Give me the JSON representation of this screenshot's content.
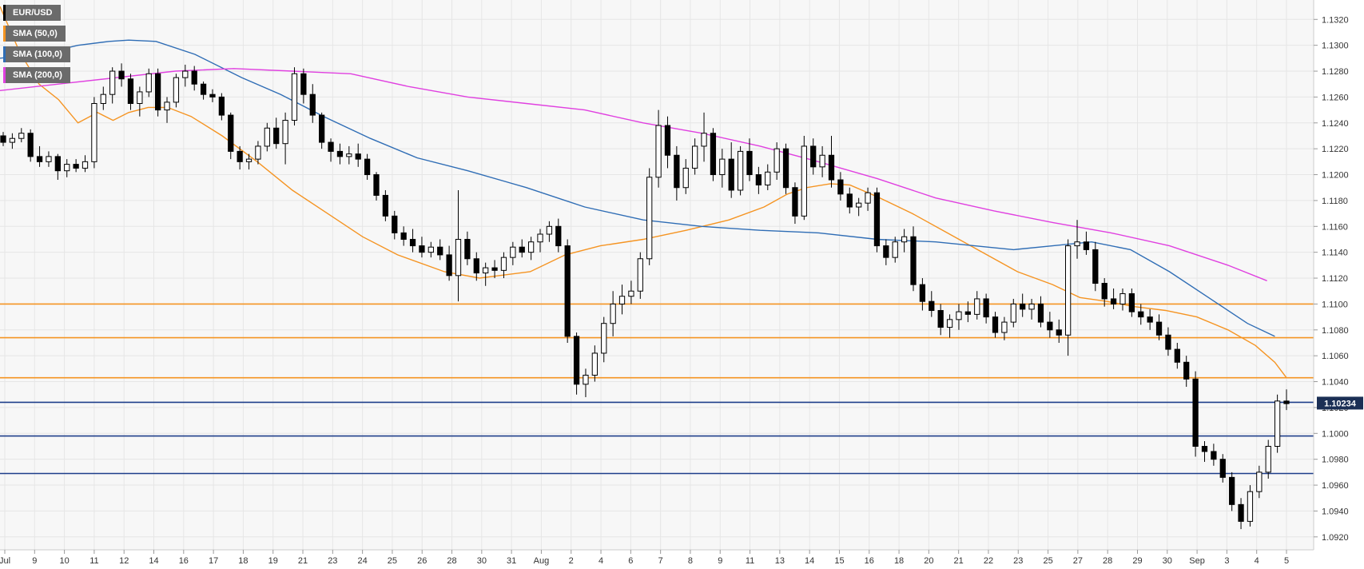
{
  "legend": [
    {
      "label": "EUR/USD",
      "color": "#000000"
    },
    {
      "label": "SMA (50,0)",
      "color": "#f59422"
    },
    {
      "label": "SMA (100,0)",
      "color": "#2f6db5"
    },
    {
      "label": "SMA (200,0)",
      "color": "#e040e0"
    }
  ],
  "chart_data": {
    "type": "candlestick",
    "symbol": "EUR/USD",
    "ylim": [
      1.091,
      1.1335
    ],
    "y_ticks": [
      1.132,
      1.13,
      1.128,
      1.126,
      1.124,
      1.122,
      1.12,
      1.118,
      1.116,
      1.114,
      1.112,
      1.11,
      1.108,
      1.106,
      1.104,
      1.102,
      1.1,
      1.098,
      1.096,
      1.094,
      1.092
    ],
    "x_labels": [
      "Jul",
      "9",
      "10",
      "11",
      "12",
      "14",
      "16",
      "17",
      "18",
      "19",
      "21",
      "23",
      "24",
      "25",
      "26",
      "28",
      "30",
      "31",
      "Aug",
      "2",
      "4",
      "6",
      "7",
      "8",
      "9",
      "11",
      "13",
      "14",
      "15",
      "16",
      "18",
      "20",
      "21",
      "22",
      "23",
      "25",
      "27",
      "28",
      "29",
      "30",
      "Sep",
      "3",
      "4",
      "5"
    ],
    "last_price": 1.10234,
    "last_price_label": "1.10234",
    "horizontal_levels": [
      {
        "value": 1.11,
        "color": "#f59422"
      },
      {
        "value": 1.1074,
        "color": "#f59422"
      },
      {
        "value": 1.1043,
        "color": "#f59422"
      },
      {
        "value": 1.1024,
        "color": "#1e3e8a"
      },
      {
        "value": 1.0998,
        "color": "#1e3e8a"
      },
      {
        "value": 1.0969,
        "color": "#1e3e8a"
      }
    ],
    "series": [
      {
        "name": "SMA (50,0)",
        "color": "#f59422",
        "points": [
          [
            0,
            1.133
          ],
          [
            0.05,
            1.1295
          ],
          [
            0.1,
            1.127
          ],
          [
            0.15,
            1.1258
          ],
          [
            0.2,
            1.124
          ],
          [
            0.25,
            1.1248
          ],
          [
            0.29,
            1.1242
          ],
          [
            0.33,
            1.1248
          ],
          [
            0.38,
            1.1252
          ],
          [
            0.43,
            1.1252
          ],
          [
            0.49,
            1.1245
          ],
          [
            0.57,
            1.123
          ],
          [
            0.66,
            1.121
          ],
          [
            0.75,
            1.1188
          ],
          [
            0.84,
            1.117
          ],
          [
            0.93,
            1.1152
          ],
          [
            1.02,
            1.1138
          ],
          [
            1.14,
            1.1125
          ],
          [
            1.23,
            1.112
          ],
          [
            1.36,
            1.1125
          ],
          [
            1.45,
            1.1138
          ],
          [
            1.54,
            1.1145
          ],
          [
            1.65,
            1.115
          ],
          [
            1.76,
            1.1157
          ],
          [
            1.87,
            1.1165
          ],
          [
            1.96,
            1.1175
          ],
          [
            2.02,
            1.1185
          ],
          [
            2.07,
            1.119
          ],
          [
            2.13,
            1.1193
          ],
          [
            2.18,
            1.1192
          ],
          [
            2.25,
            1.1183
          ],
          [
            2.34,
            1.117
          ],
          [
            2.43,
            1.1155
          ],
          [
            2.52,
            1.114
          ],
          [
            2.61,
            1.1125
          ],
          [
            2.7,
            1.1115
          ],
          [
            2.77,
            1.1105
          ],
          [
            2.84,
            1.1102
          ],
          [
            2.91,
            1.1098
          ],
          [
            2.99,
            1.1095
          ],
          [
            3.07,
            1.109
          ],
          [
            3.15,
            1.108
          ],
          [
            3.22,
            1.1068
          ],
          [
            3.27,
            1.1055
          ],
          [
            3.3,
            1.1043
          ]
        ]
      },
      {
        "name": "SMA (100,0)",
        "color": "#2f6db5",
        "points": [
          [
            0,
            1.129
          ],
          [
            0.1,
            1.1293
          ],
          [
            0.2,
            1.13
          ],
          [
            0.28,
            1.1303
          ],
          [
            0.33,
            1.1304
          ],
          [
            0.4,
            1.1303
          ],
          [
            0.5,
            1.1293
          ],
          [
            0.62,
            1.1275
          ],
          [
            0.72,
            1.1262
          ],
          [
            0.83,
            1.1245
          ],
          [
            0.95,
            1.1228
          ],
          [
            1.07,
            1.1213
          ],
          [
            1.2,
            1.1203
          ],
          [
            1.35,
            1.119
          ],
          [
            1.5,
            1.1175
          ],
          [
            1.65,
            1.1165
          ],
          [
            1.8,
            1.116
          ],
          [
            1.95,
            1.1157
          ],
          [
            2.1,
            1.1155
          ],
          [
            2.25,
            1.115
          ],
          [
            2.4,
            1.1148
          ],
          [
            2.5,
            1.1145
          ],
          [
            2.6,
            1.1142
          ],
          [
            2.7,
            1.1145
          ],
          [
            2.8,
            1.1148
          ],
          [
            2.9,
            1.1142
          ],
          [
            3.0,
            1.1125
          ],
          [
            3.1,
            1.1105
          ],
          [
            3.2,
            1.1085
          ],
          [
            3.27,
            1.1075
          ]
        ]
      },
      {
        "name": "SMA (200,0)",
        "color": "#e040e0",
        "points": [
          [
            0,
            1.1265
          ],
          [
            0.15,
            1.127
          ],
          [
            0.3,
            1.1275
          ],
          [
            0.45,
            1.128
          ],
          [
            0.6,
            1.1282
          ],
          [
            0.75,
            1.128
          ],
          [
            0.9,
            1.1278
          ],
          [
            1.05,
            1.1268
          ],
          [
            1.2,
            1.126
          ],
          [
            1.35,
            1.1255
          ],
          [
            1.5,
            1.125
          ],
          [
            1.65,
            1.124
          ],
          [
            1.8,
            1.1232
          ],
          [
            1.95,
            1.1222
          ],
          [
            2.1,
            1.121
          ],
          [
            2.25,
            1.1197
          ],
          [
            2.4,
            1.1182
          ],
          [
            2.55,
            1.1172
          ],
          [
            2.7,
            1.1163
          ],
          [
            2.85,
            1.1155
          ],
          [
            3.0,
            1.1145
          ],
          [
            3.15,
            1.113
          ],
          [
            3.25,
            1.1118
          ]
        ]
      }
    ],
    "candles": [
      [
        1.123,
        1.1233,
        1.1222,
        1.1225
      ],
      [
        1.1225,
        1.1232,
        1.122,
        1.1228
      ],
      [
        1.1228,
        1.1236,
        1.1225,
        1.1232
      ],
      [
        1.1232,
        1.1235,
        1.121,
        1.1214
      ],
      [
        1.1214,
        1.1222,
        1.1206,
        1.121
      ],
      [
        1.121,
        1.1218,
        1.1206,
        1.1214
      ],
      [
        1.1214,
        1.1216,
        1.1196,
        1.1203
      ],
      [
        1.1203,
        1.1212,
        1.1198,
        1.1208
      ],
      [
        1.1208,
        1.1212,
        1.1202,
        1.1205
      ],
      [
        1.1205,
        1.1215,
        1.1202,
        1.121
      ],
      [
        1.121,
        1.126,
        1.1205,
        1.1255
      ],
      [
        1.1255,
        1.1268,
        1.125,
        1.1262
      ],
      [
        1.1262,
        1.1283,
        1.1255,
        1.128
      ],
      [
        1.128,
        1.1286,
        1.1268,
        1.1274
      ],
      [
        1.1274,
        1.1278,
        1.125,
        1.1255
      ],
      [
        1.1255,
        1.1268,
        1.1245,
        1.1264
      ],
      [
        1.1264,
        1.1282,
        1.126,
        1.1278
      ],
      [
        1.1278,
        1.1282,
        1.1245,
        1.125
      ],
      [
        1.125,
        1.126,
        1.124,
        1.1256
      ],
      [
        1.1256,
        1.1278,
        1.1252,
        1.1275
      ],
      [
        1.1275,
        1.1285,
        1.1268,
        1.128
      ],
      [
        1.128,
        1.1284,
        1.1265,
        1.127
      ],
      [
        1.127,
        1.1272,
        1.1258,
        1.1262
      ],
      [
        1.1262,
        1.1266,
        1.1256,
        1.126
      ],
      [
        1.126,
        1.1263,
        1.1242,
        1.1246
      ],
      [
        1.1246,
        1.1248,
        1.1212,
        1.1218
      ],
      [
        1.1218,
        1.1222,
        1.1204,
        1.121
      ],
      [
        1.121,
        1.1216,
        1.1204,
        1.1212
      ],
      [
        1.1212,
        1.1226,
        1.1208,
        1.1222
      ],
      [
        1.1222,
        1.124,
        1.1218,
        1.1236
      ],
      [
        1.1236,
        1.1244,
        1.122,
        1.1224
      ],
      [
        1.1224,
        1.1248,
        1.1208,
        1.1242
      ],
      [
        1.1242,
        1.1283,
        1.1238,
        1.1278
      ],
      [
        1.1278,
        1.1282,
        1.1255,
        1.1262
      ],
      [
        1.1262,
        1.127,
        1.124,
        1.1246
      ],
      [
        1.1246,
        1.1248,
        1.122,
        1.1225
      ],
      [
        1.1225,
        1.1228,
        1.121,
        1.1218
      ],
      [
        1.1218,
        1.1224,
        1.1208,
        1.1214
      ],
      [
        1.1214,
        1.1222,
        1.1208,
        1.1216
      ],
      [
        1.1216,
        1.1224,
        1.1206,
        1.1212
      ],
      [
        1.1212,
        1.1216,
        1.1196,
        1.12
      ],
      [
        1.12,
        1.1202,
        1.118,
        1.1184
      ],
      [
        1.1184,
        1.1188,
        1.1164,
        1.1168
      ],
      [
        1.1168,
        1.1172,
        1.115,
        1.1155
      ],
      [
        1.1155,
        1.116,
        1.1145,
        1.115
      ],
      [
        1.115,
        1.1158,
        1.114,
        1.1145
      ],
      [
        1.1145,
        1.1152,
        1.1136,
        1.114
      ],
      [
        1.114,
        1.1148,
        1.1136,
        1.1144
      ],
      [
        1.1144,
        1.115,
        1.1134,
        1.1138
      ],
      [
        1.1138,
        1.1145,
        1.1118,
        1.1122
      ],
      [
        1.1122,
        1.1188,
        1.1102,
        1.115
      ],
      [
        1.115,
        1.1156,
        1.113,
        1.1135
      ],
      [
        1.1135,
        1.114,
        1.1118,
        1.1124
      ],
      [
        1.1124,
        1.1132,
        1.1114,
        1.1128
      ],
      [
        1.1128,
        1.1134,
        1.112,
        1.1126
      ],
      [
        1.1126,
        1.114,
        1.112,
        1.1136
      ],
      [
        1.1136,
        1.1148,
        1.113,
        1.1144
      ],
      [
        1.1144,
        1.115,
        1.1136,
        1.114
      ],
      [
        1.114,
        1.1152,
        1.1134,
        1.1148
      ],
      [
        1.1148,
        1.1158,
        1.114,
        1.1154
      ],
      [
        1.1154,
        1.1164,
        1.1148,
        1.116
      ],
      [
        1.116,
        1.1166,
        1.114,
        1.1145
      ],
      [
        1.1145,
        1.115,
        1.107,
        1.1075
      ],
      [
        1.1075,
        1.1078,
        1.103,
        1.1038
      ],
      [
        1.1038,
        1.105,
        1.1028,
        1.1045
      ],
      [
        1.1045,
        1.1068,
        1.104,
        1.1062
      ],
      [
        1.1062,
        1.109,
        1.1055,
        1.1085
      ],
      [
        1.1085,
        1.111,
        1.1075,
        1.11
      ],
      [
        1.11,
        1.1115,
        1.1092,
        1.1106
      ],
      [
        1.1106,
        1.1118,
        1.11,
        1.111
      ],
      [
        1.111,
        1.114,
        1.1104,
        1.1135
      ],
      [
        1.1135,
        1.1205,
        1.113,
        1.1198
      ],
      [
        1.1198,
        1.125,
        1.119,
        1.1238
      ],
      [
        1.1238,
        1.1245,
        1.1205,
        1.1215
      ],
      [
        1.1215,
        1.1222,
        1.118,
        1.119
      ],
      [
        1.119,
        1.1212,
        1.1185,
        1.1205
      ],
      [
        1.1205,
        1.1228,
        1.12,
        1.1222
      ],
      [
        1.1222,
        1.1248,
        1.121,
        1.1232
      ],
      [
        1.1232,
        1.1236,
        1.1195,
        1.12
      ],
      [
        1.12,
        1.122,
        1.119,
        1.1212
      ],
      [
        1.1212,
        1.1225,
        1.1182,
        1.1188
      ],
      [
        1.1188,
        1.1222,
        1.1184,
        1.1218
      ],
      [
        1.1218,
        1.1228,
        1.1195,
        1.12
      ],
      [
        1.12,
        1.1206,
        1.1185,
        1.1192
      ],
      [
        1.1192,
        1.1208,
        1.1188,
        1.1202
      ],
      [
        1.1202,
        1.1225,
        1.1196,
        1.122
      ],
      [
        1.122,
        1.1224,
        1.1185,
        1.119
      ],
      [
        1.119,
        1.1194,
        1.1162,
        1.1168
      ],
      [
        1.1168,
        1.123,
        1.1165,
        1.1222
      ],
      [
        1.1222,
        1.1228,
        1.12,
        1.1206
      ],
      [
        1.1206,
        1.1222,
        1.1198,
        1.1215
      ],
      [
        1.1215,
        1.123,
        1.119,
        1.1196
      ],
      [
        1.1196,
        1.1202,
        1.118,
        1.1185
      ],
      [
        1.1185,
        1.119,
        1.117,
        1.1175
      ],
      [
        1.1175,
        1.1182,
        1.1168,
        1.1178
      ],
      [
        1.1178,
        1.119,
        1.1172,
        1.1186
      ],
      [
        1.1186,
        1.119,
        1.114,
        1.1145
      ],
      [
        1.1145,
        1.115,
        1.113,
        1.1136
      ],
      [
        1.1136,
        1.1152,
        1.1132,
        1.1148
      ],
      [
        1.1148,
        1.1158,
        1.114,
        1.1152
      ],
      [
        1.1152,
        1.116,
        1.111,
        1.1115
      ],
      [
        1.1115,
        1.112,
        1.1095,
        1.1102
      ],
      [
        1.1102,
        1.111,
        1.109,
        1.1095
      ],
      [
        1.1095,
        1.11,
        1.1076,
        1.1082
      ],
      [
        1.1082,
        1.1092,
        1.1074,
        1.1088
      ],
      [
        1.1088,
        1.11,
        1.108,
        1.1094
      ],
      [
        1.1094,
        1.1102,
        1.1086,
        1.1092
      ],
      [
        1.1092,
        1.111,
        1.1088,
        1.1104
      ],
      [
        1.1104,
        1.1108,
        1.1085,
        1.109
      ],
      [
        1.109,
        1.1094,
        1.1074,
        1.1078
      ],
      [
        1.1078,
        1.109,
        1.1072,
        1.1086
      ],
      [
        1.1086,
        1.1104,
        1.1082,
        1.11
      ],
      [
        1.11,
        1.1108,
        1.109,
        1.1096
      ],
      [
        1.1096,
        1.1104,
        1.1088,
        1.11
      ],
      [
        1.11,
        1.1106,
        1.1082,
        1.1086
      ],
      [
        1.1086,
        1.1094,
        1.1074,
        1.108
      ],
      [
        1.108,
        1.1088,
        1.107,
        1.1076
      ],
      [
        1.1076,
        1.115,
        1.106,
        1.1145
      ],
      [
        1.1145,
        1.1165,
        1.1135,
        1.1148
      ],
      [
        1.1148,
        1.1156,
        1.1138,
        1.1142
      ],
      [
        1.1142,
        1.1148,
        1.111,
        1.1116
      ],
      [
        1.1116,
        1.112,
        1.1098,
        1.1104
      ],
      [
        1.1104,
        1.1112,
        1.1096,
        1.11
      ],
      [
        1.11,
        1.1112,
        1.1095,
        1.1108
      ],
      [
        1.1108,
        1.1112,
        1.109,
        1.1094
      ],
      [
        1.1094,
        1.11,
        1.1084,
        1.109
      ],
      [
        1.109,
        1.1096,
        1.108,
        1.1086
      ],
      [
        1.1086,
        1.1092,
        1.1072,
        1.1076
      ],
      [
        1.1076,
        1.1082,
        1.106,
        1.1065
      ],
      [
        1.1065,
        1.107,
        1.105,
        1.1055
      ],
      [
        1.1055,
        1.106,
        1.1036,
        1.1042
      ],
      [
        1.1042,
        1.1048,
        1.0982,
        1.099
      ],
      [
        1.099,
        1.0994,
        1.0978,
        1.0986
      ],
      [
        1.0986,
        1.0992,
        1.0975,
        1.098
      ],
      [
        1.098,
        1.0984,
        1.0962,
        1.0966
      ],
      [
        1.0966,
        1.097,
        1.094,
        1.0945
      ],
      [
        1.0945,
        1.095,
        1.0926,
        1.0932
      ],
      [
        1.0932,
        1.096,
        1.0928,
        1.0955
      ],
      [
        1.0955,
        1.0975,
        1.095,
        1.097
      ],
      [
        1.097,
        1.0995,
        1.0965,
        1.099
      ],
      [
        1.099,
        1.103,
        1.0985,
        1.1025
      ],
      [
        1.1025,
        1.1034,
        1.1018,
        1.1023
      ]
    ]
  }
}
